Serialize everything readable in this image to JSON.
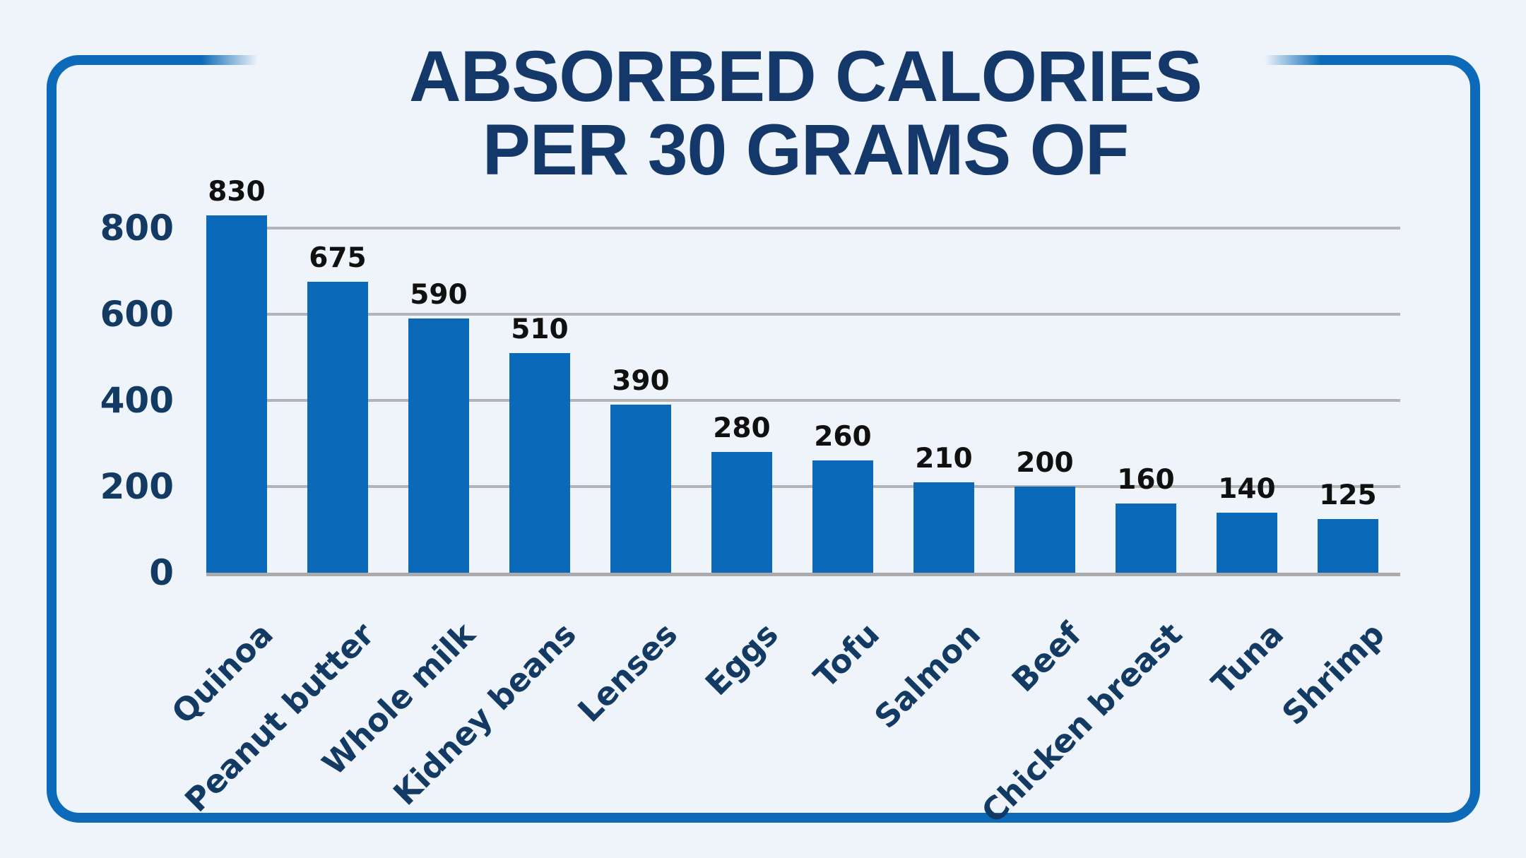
{
  "page": {
    "background_color": "#eff4fa",
    "frame_border_color": "#0c6ab8"
  },
  "title": {
    "line1": "ABSORBED CALORIES",
    "line2": "PER 30 GRAMS OF",
    "color": "#15386b"
  },
  "chart_data": {
    "type": "bar",
    "title": "ABSORBED CALORIES PER 30 GRAMS OF",
    "title_lines": [
      "ABSORBED CALORIES",
      "PER 30 GRAMS OF"
    ],
    "categories": [
      "Quinoa",
      "Peanut butter",
      "Whole milk",
      "Kidney beans",
      "Lenses",
      "Eggs",
      "Tofu",
      "Salmon",
      "Beef",
      "Chicken breast",
      "Tuna",
      "Shrimp"
    ],
    "values": [
      830,
      675,
      590,
      510,
      390,
      280,
      260,
      210,
      200,
      160,
      140,
      125
    ],
    "value_labels_shown": true,
    "y_ticks": [
      0,
      200,
      400,
      600,
      800
    ],
    "ylim": [
      0,
      880
    ],
    "xlabel": "",
    "ylabel": "",
    "grid": true,
    "legend_position": "none",
    "x_label_rotation_deg": 45,
    "bar_color": "#0b69b9",
    "value_label_color": "#101010",
    "axis_text_color": "#123a63",
    "gridline_color": "#b4b4b6"
  }
}
